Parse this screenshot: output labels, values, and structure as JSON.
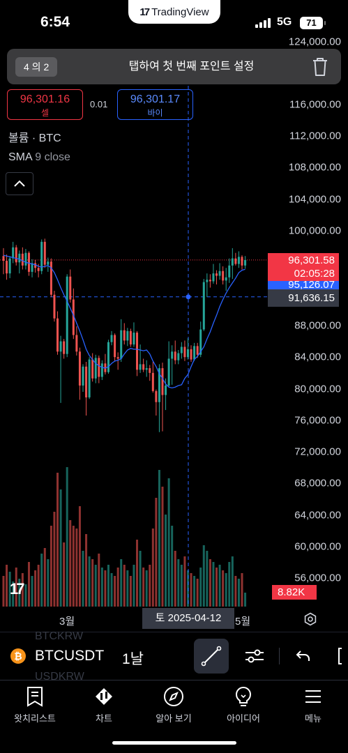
{
  "status_bar": {
    "time": "6:54",
    "network": "5G",
    "battery": "71",
    "app_banner": "TradingView"
  },
  "toast": {
    "counter": "4 의 2",
    "message": "탭하여 첫 번째 포인트 설정"
  },
  "quote": {
    "bid_price": "96,301.16",
    "bid_label": "셀",
    "spread": "0.01",
    "ask_price": "96,301.17",
    "ask_label": "바이"
  },
  "legend": {
    "volume": "볼륨 · BTC",
    "sma_name": "SMA",
    "sma_params": "9 close"
  },
  "price_scale": {
    "ticks": [
      "124,000.00",
      "116,000.00",
      "112,000.00",
      "108,000.00",
      "104,000.00",
      "100,000.00",
      "88,000.00",
      "84,000.00",
      "80,000.00",
      "76,000.00",
      "72,000.00",
      "68,000.00",
      "64,000.00",
      "60,000.00",
      "56,000.00"
    ]
  },
  "price_tags": {
    "last_price": "96,301.58",
    "countdown": "02:05:28",
    "sma_value": "95,126.07",
    "crosshair_price": "91,636.15",
    "volume_value": "8.82K"
  },
  "time_axis": {
    "labels": [
      "3월",
      "5월"
    ],
    "crosshair_date": "토 2025-04-12"
  },
  "colors": {
    "up": "#26a69a",
    "down": "#ef5350",
    "sma": "#2962ff",
    "last_price": "#f23645",
    "crosshair": "#2962ff"
  },
  "toolbar": {
    "symbol": "BTCUSDT",
    "interval": "1날",
    "ghost_top": "BTCKRW",
    "ghost_bottom": "USDKRW"
  },
  "nav": {
    "items": [
      "왓치리스트",
      "차트",
      "알아 보기",
      "아이디어",
      "메뉴"
    ]
  },
  "chart_data": {
    "type": "candlestick",
    "symbol": "BTCUSDT",
    "interval": "1날",
    "ylim": [
      54000,
      124000
    ],
    "x_labels": [
      "3월",
      "5월"
    ],
    "ohlc": [
      [
        96800,
        97800,
        94500,
        96200
      ],
      [
        96200,
        97000,
        93800,
        94600
      ],
      [
        94600,
        96800,
        94000,
        96500
      ],
      [
        96500,
        98600,
        95900,
        97900
      ],
      [
        97900,
        98200,
        95600,
        96000
      ],
      [
        96000,
        97500,
        94600,
        97100
      ],
      [
        97100,
        97900,
        95100,
        95600
      ],
      [
        95600,
        97700,
        95100,
        97200
      ],
      [
        97200,
        97400,
        94300,
        94800
      ],
      [
        94800,
        96400,
        94100,
        95900
      ],
      [
        95900,
        96300,
        94700,
        95300
      ],
      [
        95300,
        95800,
        94100,
        94900
      ],
      [
        94900,
        98900,
        94500,
        98600
      ],
      [
        98600,
        99000,
        95300,
        95700
      ],
      [
        95700,
        96600,
        94800,
        96100
      ],
      [
        96100,
        96500,
        91600,
        91900
      ],
      [
        91900,
        92400,
        88500,
        88900
      ],
      [
        88900,
        89800,
        84300,
        84700
      ],
      [
        84700,
        86700,
        78200,
        86000
      ],
      [
        86000,
        86300,
        83800,
        84400
      ],
      [
        84400,
        94500,
        84000,
        94200
      ],
      [
        94200,
        95100,
        90900,
        91300
      ],
      [
        91300,
        92700,
        86300,
        86800
      ],
      [
        86800,
        87900,
        84200,
        84700
      ],
      [
        84700,
        85200,
        78600,
        80400
      ],
      [
        80400,
        83100,
        79600,
        82800
      ],
      [
        82800,
        83400,
        76600,
        78900
      ],
      [
        78900,
        84000,
        78700,
        83700
      ],
      [
        83700,
        84500,
        80900,
        81300
      ],
      [
        81300,
        84300,
        80700,
        83900
      ],
      [
        83900,
        84200,
        80700,
        81500
      ],
      [
        81500,
        83600,
        81100,
        83200
      ],
      [
        83200,
        84400,
        81800,
        82100
      ],
      [
        82100,
        86200,
        81900,
        85900
      ],
      [
        85900,
        87300,
        85500,
        86800
      ],
      [
        86800,
        87000,
        83500,
        84000
      ],
      [
        84000,
        84600,
        82400,
        83800
      ],
      [
        83800,
        88800,
        83400,
        87400
      ],
      [
        87400,
        88300,
        85600,
        86100
      ],
      [
        86100,
        87700,
        85400,
        87300
      ],
      [
        87300,
        87600,
        85300,
        85600
      ],
      [
        85600,
        88400,
        85300,
        87100
      ],
      [
        87100,
        87300,
        81600,
        82400
      ],
      [
        82400,
        85600,
        82000,
        83100
      ],
      [
        83100,
        83800,
        82100,
        82400
      ],
      [
        82400,
        83600,
        81500,
        82600
      ],
      [
        82600,
        83000,
        81000,
        82000
      ],
      [
        82000,
        83400,
        79500,
        79700
      ],
      [
        79700,
        79900,
        76600,
        78300
      ],
      [
        78300,
        83100,
        74500,
        82600
      ],
      [
        82600,
        83300,
        74600,
        79200
      ],
      [
        79200,
        81300,
        77300,
        80400
      ],
      [
        80400,
        86000,
        80200,
        83800
      ],
      [
        83800,
        85500,
        80500,
        84700
      ],
      [
        84700,
        86100,
        83100,
        83600
      ],
      [
        83600,
        84900,
        83100,
        84500
      ],
      [
        84500,
        85900,
        83800,
        85300
      ],
      [
        85300,
        86100,
        83500,
        84000
      ],
      [
        84000,
        86400,
        83700,
        85000
      ],
      [
        85000,
        85500,
        83400,
        83700
      ],
      [
        83700,
        85800,
        83500,
        85400
      ],
      [
        85400,
        85800,
        83900,
        84300
      ],
      [
        84300,
        88500,
        84000,
        87500
      ],
      [
        87500,
        93900,
        87300,
        93500
      ],
      [
        93500,
        94600,
        91600,
        93800
      ],
      [
        93800,
        94500,
        92800,
        93600
      ],
      [
        93600,
        95800,
        93300,
        94600
      ],
      [
        94600,
        95000,
        93200,
        94300
      ],
      [
        94300,
        95900,
        93800,
        94900
      ],
      [
        94900,
        95500,
        93200,
        93700
      ],
      [
        93700,
        95300,
        92400,
        94100
      ],
      [
        94100,
        96500,
        93400,
        95600
      ],
      [
        95600,
        97800,
        93900,
        96500
      ],
      [
        96500,
        97200,
        95600,
        95800
      ],
      [
        95800,
        97400,
        95300,
        96700
      ],
      [
        96700,
        96900,
        95100,
        95600
      ],
      [
        95600,
        96800,
        95200,
        96300
      ]
    ],
    "sma_9_close": [
      96900,
      96800,
      96700,
      96600,
      96500,
      96400,
      96200,
      96000,
      95900,
      95800,
      95700,
      95500,
      95400,
      95500,
      95600,
      95300,
      94700,
      93800,
      92800,
      91900,
      91100,
      90200,
      89300,
      88300,
      87300,
      86200,
      85000,
      84200,
      83700,
      83200,
      82900,
      82700,
      82600,
      82800,
      83200,
      83500,
      83600,
      83800,
      84400,
      84900,
      85100,
      85000,
      85000,
      84900,
      84800,
      84900,
      84400,
      83500,
      82800,
      81900,
      81300,
      80600,
      80200,
      80100,
      80200,
      80400,
      80500,
      81300,
      81800,
      82800,
      83700,
      84100,
      84700,
      85300,
      86300,
      87200,
      88300,
      89300,
      90400,
      91300,
      92100,
      92800,
      93400,
      94000,
      94700,
      95000,
      95126
    ],
    "volume_relative": [
      0.22,
      0.3,
      0.25,
      0.18,
      0.28,
      0.2,
      0.24,
      0.16,
      0.32,
      0.22,
      0.26,
      0.3,
      0.38,
      0.42,
      0.34,
      0.58,
      0.68,
      0.96,
      0.84,
      0.46,
      1.0,
      0.62,
      0.58,
      0.56,
      0.72,
      0.4,
      0.52,
      0.36,
      0.34,
      0.3,
      0.38,
      0.28,
      0.26,
      0.3,
      0.24,
      0.22,
      0.28,
      0.34,
      0.3,
      0.26,
      0.22,
      0.3,
      0.48,
      0.4,
      0.28,
      0.26,
      0.3,
      0.56,
      0.78,
      0.98,
      0.86,
      0.66,
      0.92,
      0.58,
      0.4,
      0.34,
      0.3,
      0.36,
      0.26,
      0.24,
      0.22,
      0.2,
      0.28,
      0.44,
      0.4,
      0.34,
      0.32,
      0.28,
      0.3,
      0.26,
      0.24,
      0.32,
      0.36,
      0.22,
      0.2,
      0.24,
      0.1
    ],
    "last_price": 96301.58,
    "sma_last": 95126.07,
    "crosshair_price": 91636.15,
    "volume_last": "8.82K",
    "crosshair_date": "2025-04-12"
  }
}
